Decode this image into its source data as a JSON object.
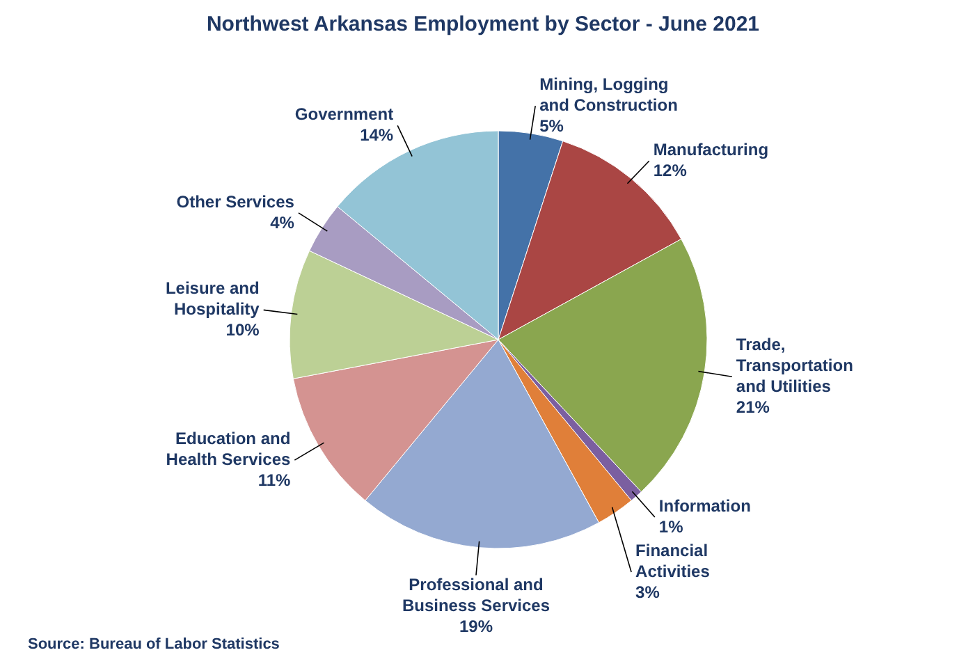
{
  "chart_data": {
    "type": "pie",
    "title": "Northwest Arkansas Employment by Sector - June 2021",
    "categories": [
      "Mining, Logging and Construction",
      "Manufacturing",
      "Trade, Transportation and Utilities",
      "Information",
      "Financial Activities",
      "Professional and Business Services",
      "Education and Health Services",
      "Leisure and Hospitality",
      "Other Services",
      "Government"
    ],
    "values": [
      5,
      12,
      21,
      1,
      3,
      19,
      11,
      10,
      4,
      14
    ],
    "value_labels": [
      "5%",
      "12%",
      "21%",
      "1%",
      "3%",
      "19%",
      "11%",
      "10%",
      "4%",
      "14%"
    ],
    "colors": [
      "#4472a8",
      "#aa4644",
      "#8aa64f",
      "#7b5fa0",
      "#e07f39",
      "#94a9d1",
      "#d49391",
      "#bcd095",
      "#a89cc2",
      "#93c4d6"
    ],
    "annotations": [
      "Source: Bureau of Labor Statistics"
    ]
  }
}
